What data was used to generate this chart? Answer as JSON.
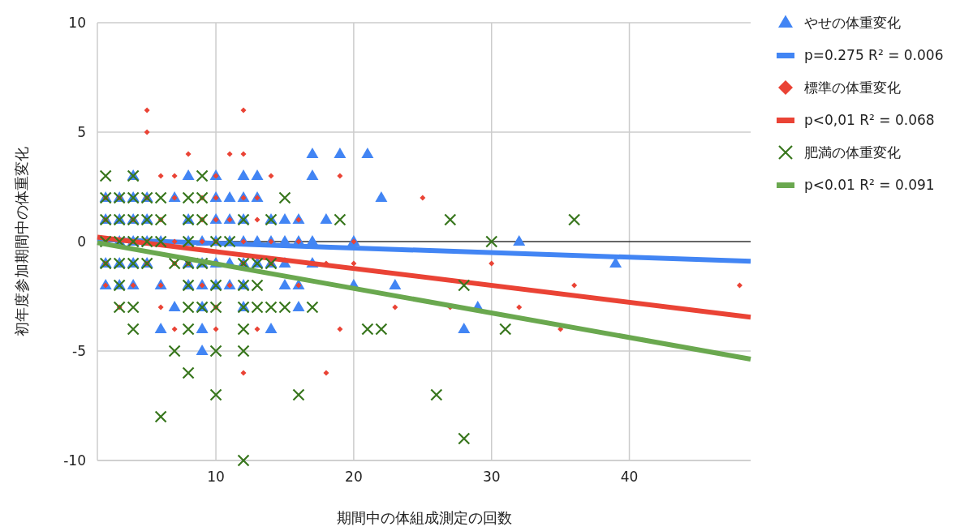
{
  "chart_data": {
    "type": "scatter",
    "xlabel": "期間中の体組成測定の回数",
    "ylabel": "初年度参加期間中の体重変化",
    "xlim": [
      1.4,
      48.8
    ],
    "ylim": [
      -10,
      10
    ],
    "xticks": [
      10,
      20,
      30,
      40
    ],
    "yticks": [
      -10,
      -5,
      0,
      5,
      10
    ],
    "grid": true,
    "legend": "right",
    "series": [
      {
        "name": "やせの体重変化",
        "marker": "triangle",
        "color": "#4285f4",
        "x": [
          2,
          3,
          4,
          5,
          7,
          10,
          11,
          12,
          13,
          2,
          3,
          4,
          5,
          8,
          10,
          11,
          12,
          14,
          15,
          16,
          18,
          22,
          4,
          8,
          10,
          12,
          13,
          17,
          17,
          19,
          21,
          3,
          4,
          5,
          6,
          8,
          9,
          10,
          11,
          12,
          13,
          14,
          15,
          16,
          17,
          20,
          32,
          2,
          3,
          4,
          5,
          8,
          9,
          10,
          11,
          12,
          13,
          14,
          15,
          17,
          39,
          2,
          3,
          4,
          6,
          8,
          9,
          10,
          11,
          12,
          15,
          16,
          20,
          23,
          7,
          9,
          12,
          16,
          29,
          6,
          9,
          14,
          28,
          9
        ],
        "values": [
          2,
          2,
          2,
          2,
          2,
          2,
          2,
          2,
          2,
          1,
          1,
          1,
          1,
          1,
          1,
          1,
          1,
          1,
          1,
          1,
          1,
          2,
          3,
          3,
          3,
          3,
          3,
          3,
          4,
          4,
          4,
          0,
          0,
          0,
          0,
          0,
          0,
          0,
          0,
          0,
          0,
          0,
          0,
          0,
          0,
          0,
          0,
          -1,
          -1,
          -1,
          -1,
          -1,
          -1,
          -1,
          -1,
          -1,
          -1,
          -1,
          -1,
          -1,
          -1,
          -2,
          -2,
          -2,
          -2,
          -2,
          -2,
          -2,
          -2,
          -2,
          -2,
          -2,
          -2,
          -2,
          -3,
          -3,
          -3,
          -3,
          -3,
          -4,
          -4,
          -4,
          -4,
          -5
        ]
      },
      {
        "name": "p=0.275 R² = 0.006",
        "type": "line",
        "color": "#4285f4",
        "x": [
          1.4,
          48.8
        ],
        "values": [
          0.1,
          -0.9
        ]
      },
      {
        "name": "標準の体重変化",
        "marker": "diamond",
        "color": "#ea4335",
        "x": [
          5,
          12,
          5,
          8,
          11,
          12,
          6,
          7,
          10,
          14,
          19,
          2,
          3,
          5,
          7,
          9,
          10,
          12,
          13,
          25,
          2,
          4,
          6,
          9,
          10,
          11,
          13,
          16,
          2,
          5,
          7,
          9,
          10,
          12,
          14,
          16,
          20,
          2,
          5,
          7,
          8,
          10,
          12,
          14,
          18,
          20,
          30,
          2,
          4,
          6,
          9,
          11,
          16,
          36,
          48,
          3,
          6,
          10,
          23,
          27,
          32,
          7,
          10,
          13,
          19,
          35,
          12,
          18
        ],
        "values": [
          6,
          6,
          5,
          4,
          4,
          4,
          3,
          3,
          3,
          3,
          3,
          2,
          2,
          2,
          2,
          2,
          2,
          2,
          2,
          2,
          1,
          1,
          1,
          1,
          1,
          1,
          1,
          1,
          0,
          0,
          0,
          0,
          0,
          0,
          0,
          0,
          0,
          -1,
          -1,
          -1,
          -1,
          -1,
          -1,
          -1,
          -1,
          -1,
          -1,
          -2,
          -2,
          -2,
          -2,
          -2,
          -2,
          -2,
          -2,
          -3,
          -3,
          -3,
          -3,
          -3,
          -3,
          -4,
          -4,
          -4,
          -4,
          -4,
          -6,
          -6
        ]
      },
      {
        "name": "p<0,01 R² = 0.068",
        "type": "line",
        "color": "#ea4335",
        "x": [
          1.4,
          48.8
        ],
        "values": [
          0.2,
          -3.45
        ]
      },
      {
        "name": "肥満の体重変化",
        "marker": "cross",
        "color": "#38761d",
        "x": [
          2,
          4,
          9,
          2,
          3,
          4,
          5,
          6,
          8,
          9,
          15,
          2,
          3,
          4,
          5,
          6,
          8,
          9,
          12,
          14,
          19,
          27,
          36,
          2,
          3,
          4,
          5,
          6,
          8,
          10,
          11,
          30,
          2,
          3,
          4,
          5,
          7,
          8,
          9,
          12,
          13,
          14,
          3,
          8,
          10,
          12,
          13,
          28,
          3,
          4,
          8,
          9,
          10,
          12,
          13,
          14,
          15,
          17,
          4,
          8,
          12,
          21,
          22,
          31,
          7,
          10,
          12,
          8,
          10,
          16,
          26,
          6,
          28,
          12
        ],
        "values": [
          3,
          3,
          3,
          2,
          2,
          2,
          2,
          2,
          2,
          2,
          2,
          1,
          1,
          1,
          1,
          1,
          1,
          1,
          1,
          1,
          1,
          1,
          1,
          0,
          0,
          0,
          0,
          0,
          0,
          0,
          0,
          0,
          -1,
          -1,
          -1,
          -1,
          -1,
          -1,
          -1,
          -1,
          -1,
          -1,
          -2,
          -2,
          -2,
          -2,
          -2,
          -2,
          -3,
          -3,
          -3,
          -3,
          -3,
          -3,
          -3,
          -3,
          -3,
          -3,
          -4,
          -4,
          -4,
          -4,
          -4,
          -4,
          -5,
          -5,
          -5,
          -6,
          -7,
          -7,
          -7,
          -8,
          -9,
          -10
        ]
      },
      {
        "name": "p<0.01 R² = 0.091",
        "type": "line",
        "color": "#6aa84f",
        "x": [
          1.4,
          48.8
        ],
        "values": [
          -0.05,
          -5.37
        ]
      }
    ]
  }
}
